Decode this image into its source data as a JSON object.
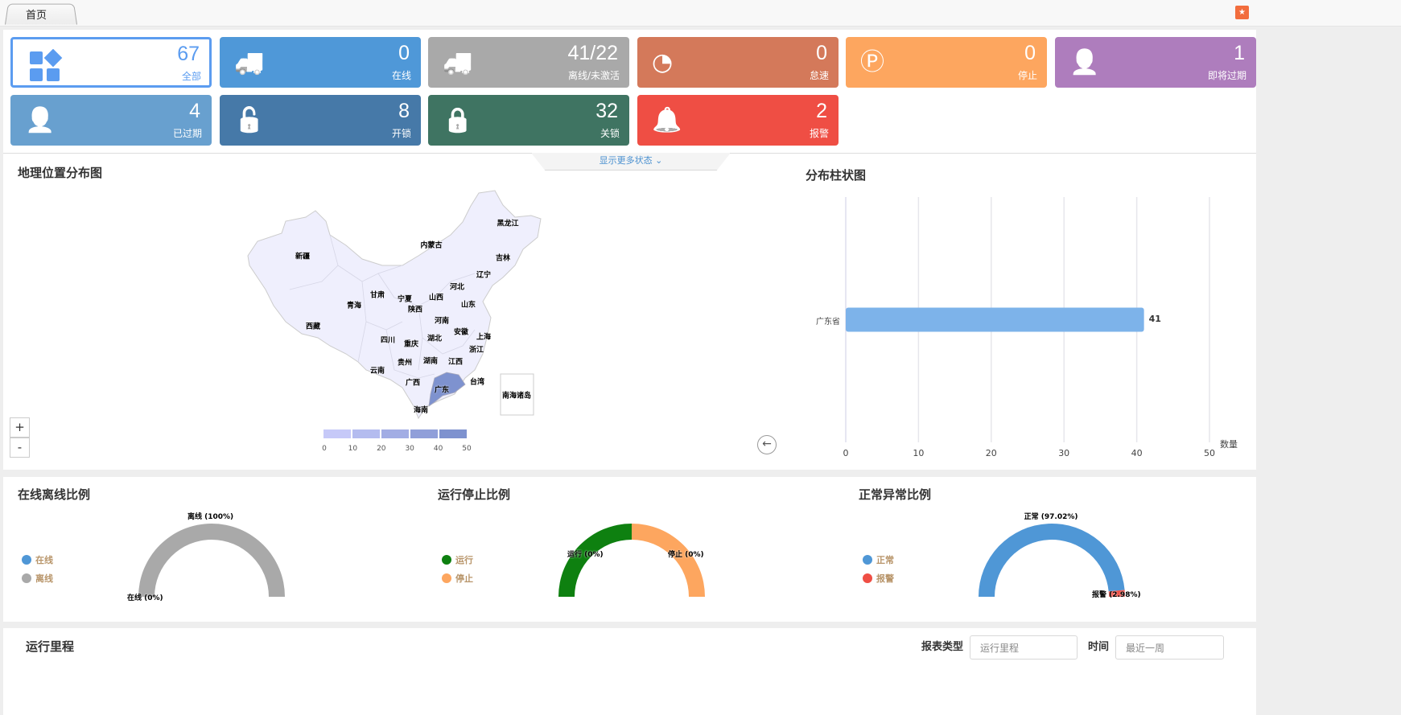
{
  "tabs": [
    {
      "label": "首页"
    }
  ],
  "favorite_icon": "star-folder-icon",
  "cards": [
    {
      "value": "67",
      "label": "全部",
      "icon": "grid-icon",
      "color": "#5b9cf0"
    },
    {
      "value": "0",
      "label": "在线",
      "icon": "truck-signal-icon",
      "color": "#4f98d8"
    },
    {
      "value": "41/22",
      "label": "离线/未激活",
      "icon": "truck-offline-icon",
      "color": "#a9a9a9"
    },
    {
      "value": "0",
      "label": "怠速",
      "icon": "gauge-icon",
      "color": "#d4795a"
    },
    {
      "value": "0",
      "label": "停止",
      "icon": "parking-icon",
      "color": "#fda65f"
    },
    {
      "value": "1",
      "label": "即将过期",
      "icon": "user-clock-icon",
      "color": "#ae7dbd"
    },
    {
      "value": "4",
      "label": "已过期",
      "icon": "user-ban-icon",
      "color": "#68a0cf"
    },
    {
      "value": "8",
      "label": "开锁",
      "icon": "unlock-icon",
      "color": "#4679a8"
    },
    {
      "value": "32",
      "label": "关锁",
      "icon": "lock-icon",
      "color": "#3f7462"
    },
    {
      "value": "2",
      "label": "报警",
      "icon": "alarm-bell-icon",
      "color": "#ef4e44"
    }
  ],
  "more_status": "显示更多状态",
  "map": {
    "title": "地理位置分布图",
    "zoom_in": "+",
    "zoom_out": "-",
    "highlight": "广东",
    "highlight_color": "#7e92cf",
    "base_color": "#efeffd",
    "provinces": [
      "黑龙江",
      "内蒙古",
      "新疆",
      "吉林",
      "辽宁",
      "河北",
      "甘肃",
      "宁夏",
      "山西",
      "青海",
      "陕西",
      "山东",
      "西藏",
      "河南",
      "安徽",
      "上海",
      "四川",
      "湖北",
      "重庆",
      "浙江",
      "贵州",
      "湖南",
      "江西",
      "云南",
      "广西",
      "广东",
      "台湾",
      "南海诸岛",
      "海南"
    ],
    "visual_map": {
      "ticks": [
        "0",
        "10",
        "20",
        "30",
        "40",
        "50"
      ],
      "colors": [
        "#c6c9f8",
        "#b4bcef",
        "#a2ade4",
        "#909fd9",
        "#7e92cf"
      ]
    }
  },
  "bar": {
    "title": "分布柱状图",
    "back_icon": "arrow-left-icon",
    "chart_data": {
      "type": "bar",
      "orientation": "horizontal",
      "categories": [
        "广东省"
      ],
      "values": [
        41
      ],
      "xlabel": "数量",
      "xlim": [
        0,
        50
      ],
      "xticks": [
        "0",
        "10",
        "20",
        "30",
        "40",
        "50"
      ],
      "grid": true,
      "color": "#7db3ea"
    }
  },
  "gauges": [
    {
      "title": "在线离线比例",
      "chart_data": {
        "type": "pie",
        "style": "half-donut",
        "slices": [
          {
            "name": "在线",
            "value": 0,
            "label": "在线 (0%)",
            "color": "#4f97d6"
          },
          {
            "name": "离线",
            "value": 100,
            "label": "离线 (100%)",
            "color": "#a9a9a9"
          }
        ]
      }
    },
    {
      "title": "运行停止比例",
      "chart_data": {
        "type": "pie",
        "style": "half-donut",
        "slices": [
          {
            "name": "运行",
            "value": 0,
            "label": "运行 (0%)",
            "color": "#0e8010"
          },
          {
            "name": "停止",
            "value": 0,
            "label": "停止 (0%)",
            "color": "#fda65f"
          }
        ]
      }
    },
    {
      "title": "正常异常比例",
      "chart_data": {
        "type": "pie",
        "style": "half-donut",
        "slices": [
          {
            "name": "正常",
            "value": 97.02,
            "label": "正常 (97.02%)",
            "color": "#4f97d6"
          },
          {
            "name": "报警",
            "value": 2.98,
            "label": "报警 (2.98%)",
            "color": "#ef4e44"
          }
        ]
      }
    }
  ],
  "report": {
    "title": "运行里程",
    "type_label": "报表类型",
    "type_value": "运行里程",
    "time_label": "时间",
    "time_value": "最近一周"
  }
}
